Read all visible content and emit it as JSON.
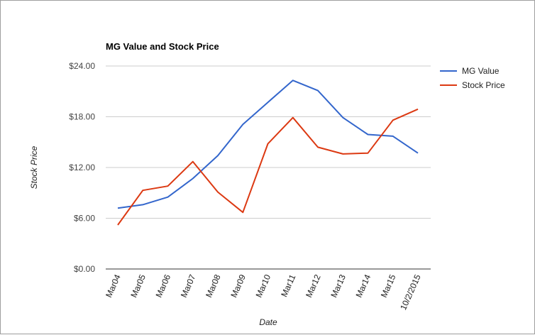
{
  "chart_data": {
    "type": "line",
    "title": "MG Value and Stock Price",
    "xlabel": "Date",
    "ylabel": "Stock Price",
    "categories": [
      "Mar04",
      "Mar05",
      "Mar06",
      "Mar07",
      "Mar08",
      "Mar09",
      "Mar10",
      "Mar11",
      "Mar12",
      "Mar13",
      "Mar14",
      "Mar15",
      "10/2/2015"
    ],
    "y_ticks": [
      "$0.00",
      "$6.00",
      "$12.00",
      "$18.00",
      "$24.00"
    ],
    "ylim": [
      0,
      24
    ],
    "grid": true,
    "legend_position": "right",
    "series": [
      {
        "name": "MG Value",
        "color": "#3366cc",
        "values": [
          7.2,
          7.6,
          8.5,
          10.7,
          13.4,
          17.1,
          19.7,
          22.3,
          21.1,
          17.9,
          15.9,
          15.7,
          13.7
        ]
      },
      {
        "name": "Stock Price",
        "color": "#dc3912",
        "values": [
          5.2,
          9.3,
          9.8,
          12.7,
          9.1,
          6.7,
          14.8,
          17.9,
          14.4,
          13.6,
          13.7,
          17.6,
          18.9
        ]
      }
    ]
  }
}
